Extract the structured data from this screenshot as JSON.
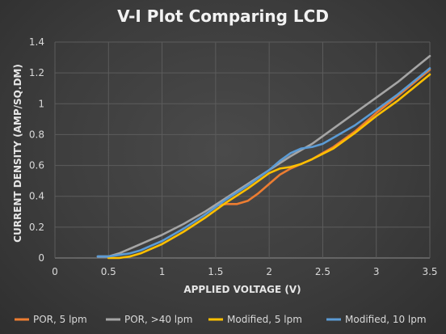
{
  "chart_data": {
    "type": "line",
    "title": "V-I Plot Comparing LCD",
    "xlabel": "APPLIED VOLTAGE (V)",
    "ylabel": "CURRENT DENSITY (AMP/SQ.DM)",
    "xlim": [
      0,
      3.5
    ],
    "ylim": [
      0,
      1.4
    ],
    "xticks": [
      "0",
      "0.5",
      "1",
      "1.5",
      "2",
      "2.5",
      "3",
      "3.5"
    ],
    "yticks": [
      "0",
      "0.2",
      "0.4",
      "0.6",
      "0.8",
      "1",
      "1.2",
      "1.4"
    ],
    "grid": true,
    "legend_position": "bottom",
    "series": [
      {
        "name": "POR, 5 lpm",
        "color": "#ed7d31",
        "x": [
          1.5,
          1.6,
          1.7,
          1.8,
          1.9,
          2.0,
          2.1,
          2.2,
          2.3,
          2.4,
          2.5,
          2.6,
          2.8,
          3.0,
          3.2,
          3.5
        ],
        "y": [
          0.34,
          0.35,
          0.35,
          0.37,
          0.42,
          0.48,
          0.54,
          0.58,
          0.61,
          0.64,
          0.68,
          0.72,
          0.82,
          0.94,
          1.05,
          1.22
        ]
      },
      {
        "name": "POR, >40 lpm",
        "color": "#a5a5a5",
        "x": [
          0.4,
          0.5,
          0.6,
          0.7,
          0.8,
          0.9,
          1.0,
          1.2,
          1.4,
          1.6,
          1.8,
          2.0,
          2.2,
          2.4,
          2.6,
          2.8,
          3.0,
          3.2,
          3.5
        ],
        "y": [
          0.01,
          0.01,
          0.03,
          0.06,
          0.09,
          0.12,
          0.15,
          0.22,
          0.3,
          0.39,
          0.48,
          0.57,
          0.66,
          0.74,
          0.84,
          0.94,
          1.04,
          1.14,
          1.31
        ]
      },
      {
        "name": "Modified, 5 lpm",
        "color": "#ffc000",
        "x": [
          0.5,
          0.6,
          0.7,
          0.8,
          0.9,
          1.0,
          1.2,
          1.4,
          1.6,
          1.8,
          2.0,
          2.1,
          2.2,
          2.3,
          2.4,
          2.6,
          2.8,
          3.0,
          3.2,
          3.5
        ],
        "y": [
          0.0,
          0.0,
          0.01,
          0.03,
          0.06,
          0.09,
          0.17,
          0.26,
          0.36,
          0.45,
          0.55,
          0.58,
          0.59,
          0.61,
          0.64,
          0.71,
          0.81,
          0.92,
          1.02,
          1.19
        ]
      },
      {
        "name": "Modified, 10 lpm",
        "color": "#5b9bd5",
        "x": [
          0.4,
          0.5,
          0.6,
          0.7,
          0.8,
          0.9,
          1.0,
          1.2,
          1.4,
          1.6,
          1.8,
          1.9,
          2.0,
          2.1,
          2.2,
          2.3,
          2.4,
          2.5,
          2.6,
          2.8,
          3.0,
          3.2,
          3.5
        ],
        "y": [
          0.01,
          0.01,
          0.02,
          0.03,
          0.05,
          0.08,
          0.11,
          0.19,
          0.28,
          0.38,
          0.47,
          0.52,
          0.57,
          0.63,
          0.68,
          0.71,
          0.72,
          0.74,
          0.78,
          0.86,
          0.96,
          1.06,
          1.23
        ]
      }
    ]
  }
}
